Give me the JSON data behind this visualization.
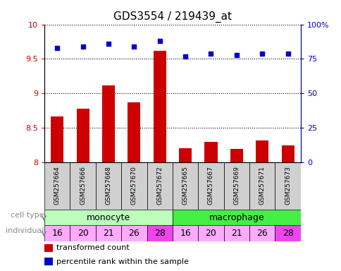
{
  "title": "GDS3554 / 219439_at",
  "samples": [
    "GSM257664",
    "GSM257666",
    "GSM257668",
    "GSM257670",
    "GSM257672",
    "GSM257665",
    "GSM257667",
    "GSM257669",
    "GSM257671",
    "GSM257673"
  ],
  "bar_values": [
    8.67,
    8.78,
    9.12,
    8.87,
    9.62,
    8.2,
    8.3,
    8.19,
    8.32,
    8.25
  ],
  "scatter_pct": [
    83,
    84,
    86,
    84,
    88,
    77,
    79,
    78,
    79,
    79
  ],
  "ylim_left": [
    8.0,
    10.0
  ],
  "ylim_right": [
    0,
    100
  ],
  "yticks_left": [
    8.0,
    8.5,
    9.0,
    9.5,
    10.0
  ],
  "yticks_right": [
    0,
    25,
    50,
    75,
    100
  ],
  "bar_color": "#cc0000",
  "scatter_color": "#0000cc",
  "cell_type_colors": {
    "monocyte": "#bbffbb",
    "macrophage": "#44ee44"
  },
  "individuals": [
    16,
    20,
    21,
    26,
    28,
    16,
    20,
    21,
    26,
    28
  ],
  "individual_colors": [
    "#ffaaff",
    "#ffaaff",
    "#ffaaff",
    "#ffaaff",
    "#ee44ee",
    "#ffaaff",
    "#ffaaff",
    "#ffaaff",
    "#ffaaff",
    "#ee44ee"
  ],
  "xtick_bg": "#cccccc",
  "legend_red_label": "transformed count",
  "legend_blue_label": "percentile rank within the sample",
  "cell_type_label": "cell type",
  "individual_label": "individual"
}
